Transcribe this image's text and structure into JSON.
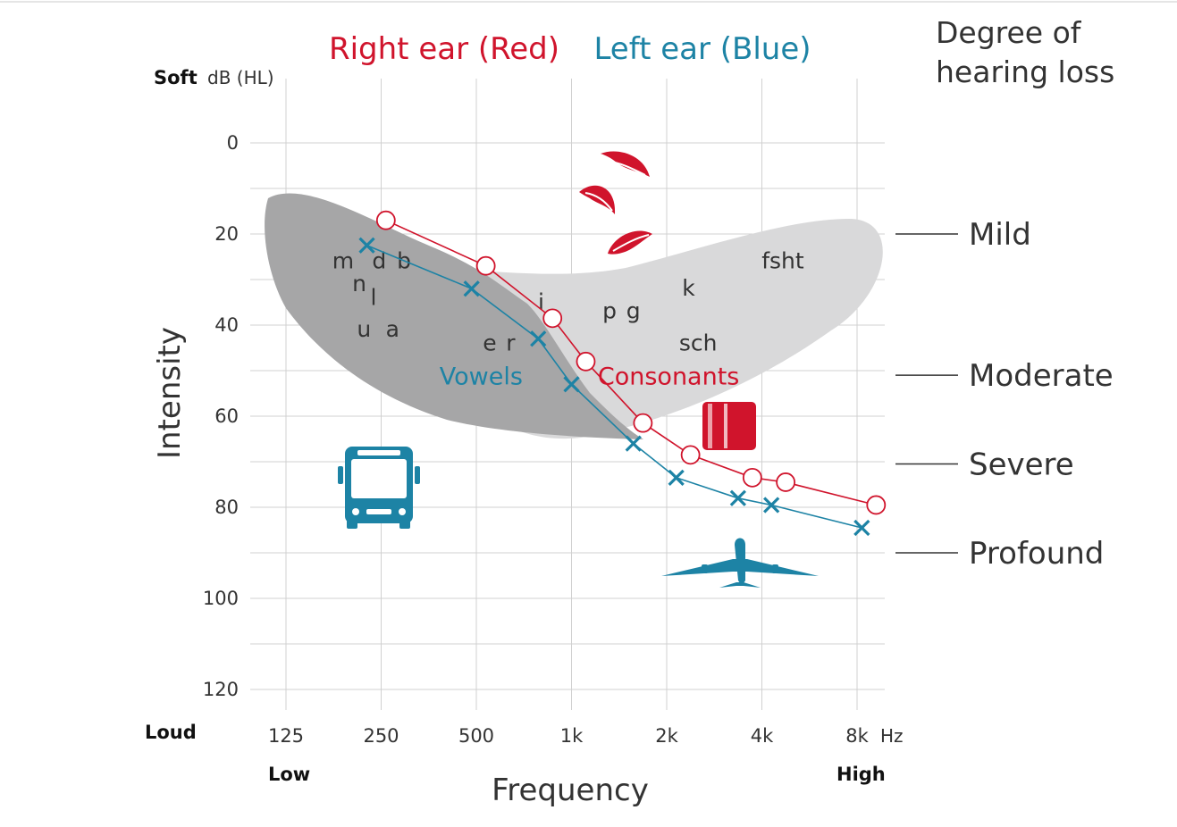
{
  "chart_data": {
    "type": "line",
    "title_right": "Right ear (Red)",
    "title_left": "Left ear (Blue)",
    "degree_title_line1": "Degree of",
    "degree_title_line2": "hearing loss",
    "ylabel": "Intensity",
    "xlabel": "Frequency",
    "y_unit_label": "dB (HL)",
    "x_unit_label": "Hz",
    "soft_label": "Soft",
    "loud_label": "Loud",
    "low_label": "Low",
    "high_label": "High",
    "ylim": [
      -10,
      125
    ],
    "y_ticks": [
      0,
      20,
      40,
      60,
      80,
      100,
      120
    ],
    "y_gridlines": [
      0,
      10,
      20,
      30,
      40,
      50,
      60,
      70,
      80,
      90,
      100,
      110,
      120
    ],
    "x_ticks": [
      {
        "label": "125",
        "octave": 0
      },
      {
        "label": "250",
        "octave": 1
      },
      {
        "label": "500",
        "octave": 2
      },
      {
        "label": "1k",
        "octave": 3
      },
      {
        "label": "2k",
        "octave": 4
      },
      {
        "label": "4k",
        "octave": 5
      },
      {
        "label": "8k",
        "octave": 6
      }
    ],
    "series": [
      {
        "name": "Right ear",
        "color": "#d0142c",
        "marker": "circle",
        "points": [
          [
            1.05,
            17
          ],
          [
            2.1,
            27
          ],
          [
            2.8,
            38.5
          ],
          [
            3.15,
            48
          ],
          [
            3.75,
            61.5
          ],
          [
            4.25,
            68.5
          ],
          [
            4.9,
            73.5
          ],
          [
            5.25,
            74.5
          ],
          [
            6.2,
            79.5
          ]
        ]
      },
      {
        "name": "Left ear",
        "color": "#1d83a5",
        "marker": "x",
        "points": [
          [
            0.85,
            22.5
          ],
          [
            1.95,
            32
          ],
          [
            2.65,
            43
          ],
          [
            3.0,
            53
          ],
          [
            3.65,
            66
          ],
          [
            4.1,
            73.5
          ],
          [
            4.75,
            78
          ],
          [
            5.1,
            79.5
          ],
          [
            6.05,
            84.5
          ]
        ]
      }
    ],
    "degree_levels": [
      {
        "label": "Mild",
        "db": 20
      },
      {
        "label": "Moderate",
        "db": 51
      },
      {
        "label": "Severe",
        "db": 70.5
      },
      {
        "label": "Profound",
        "db": 90
      }
    ],
    "speech_sounds": [
      {
        "text": "m",
        "octave": 0.6,
        "db": 26,
        "color": "#333333"
      },
      {
        "text": "d",
        "octave": 0.98,
        "db": 26,
        "color": "#333333"
      },
      {
        "text": "b",
        "octave": 1.24,
        "db": 26,
        "color": "#333333"
      },
      {
        "text": "n",
        "octave": 0.77,
        "db": 31,
        "color": "#333333"
      },
      {
        "text": "l",
        "octave": 0.92,
        "db": 34,
        "color": "#333333"
      },
      {
        "text": "u",
        "octave": 0.82,
        "db": 41,
        "color": "#333333"
      },
      {
        "text": "a",
        "octave": 1.12,
        "db": 41,
        "color": "#333333"
      },
      {
        "text": "e",
        "octave": 2.14,
        "db": 44,
        "color": "#333333"
      },
      {
        "text": "r",
        "octave": 2.36,
        "db": 44,
        "color": "#333333"
      },
      {
        "text": "i",
        "octave": 2.68,
        "db": 35,
        "color": "#333333"
      },
      {
        "text": "p",
        "octave": 3.4,
        "db": 37,
        "color": "#333333"
      },
      {
        "text": "g",
        "octave": 3.65,
        "db": 37,
        "color": "#333333"
      },
      {
        "text": "k",
        "octave": 4.23,
        "db": 32,
        "color": "#333333"
      },
      {
        "text": "fsht",
        "octave": 5.22,
        "db": 26,
        "color": "#333333"
      },
      {
        "text": "sch",
        "octave": 4.33,
        "db": 44,
        "color": "#333333"
      },
      {
        "text": "Vowels",
        "octave": 2.05,
        "db": 51.5,
        "color": "#1d83a5"
      },
      {
        "text": "Consonants",
        "octave": 4.02,
        "db": 51.5,
        "color": "#d0142c"
      }
    ],
    "banana_colors": {
      "vowels": "#a6a6a7",
      "consonants": "#d9d9da"
    },
    "icons": [
      "leaves-icon",
      "bus-icon",
      "phone-icon",
      "airplane-icon"
    ]
  }
}
